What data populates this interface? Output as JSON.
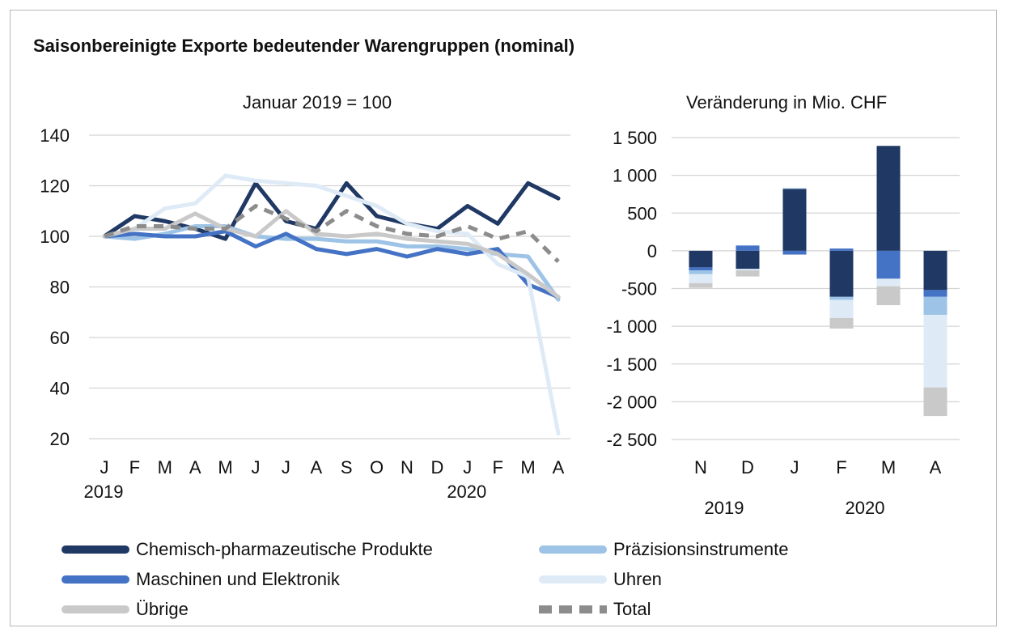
{
  "title": "Saisonbereinigte Exporte bedeutender Warengruppen (nominal)",
  "colors": {
    "chem": "#1f3864",
    "praez": "#9dc3e6",
    "masch": "#4472c4",
    "uhren": "#deebf7",
    "uebrige": "#c9c9c9",
    "total": "#8c8c8c"
  },
  "chart_data": [
    {
      "type": "line",
      "subtitle": "Januar 2019 = 100",
      "categories": [
        "J",
        "F",
        "M",
        "A",
        "M",
        "J",
        "J",
        "A",
        "S",
        "O",
        "N",
        "D",
        "J",
        "F",
        "M",
        "A"
      ],
      "year_labels": [
        {
          "label": "2019",
          "index": 0
        },
        {
          "label": "2020",
          "index": 12
        }
      ],
      "ylim": [
        20,
        140
      ],
      "yticks": [
        20,
        40,
        60,
        80,
        100,
        120,
        140
      ],
      "grid": true,
      "series": [
        {
          "name": "Chemisch-pharmazeutische Produkte",
          "key": "chem",
          "dashed": false,
          "values": [
            100,
            108,
            106,
            103,
            99,
            121,
            106,
            103,
            121,
            108,
            105,
            103,
            112,
            105,
            121,
            115
          ]
        },
        {
          "name": "Präzisionsinstrumente",
          "key": "praez",
          "dashed": false,
          "values": [
            100,
            99,
            101,
            104,
            104,
            100,
            99,
            99,
            98,
            98,
            96,
            96,
            95,
            93,
            92,
            75
          ]
        },
        {
          "name": "Maschinen und Elektronik",
          "key": "masch",
          "dashed": false,
          "values": [
            100,
            101,
            100,
            100,
            102,
            96,
            101,
            95,
            93,
            95,
            92,
            95,
            93,
            95,
            81,
            76
          ]
        },
        {
          "name": "Uhren",
          "key": "uhren",
          "dashed": false,
          "values": [
            100,
            103,
            111,
            113,
            124,
            122,
            121,
            120,
            116,
            112,
            105,
            102,
            101,
            89,
            84,
            22
          ]
        },
        {
          "name": "Übrige",
          "key": "uebrige",
          "dashed": false,
          "values": [
            100,
            103,
            103,
            109,
            103,
            100,
            110,
            101,
            100,
            101,
            99,
            98,
            97,
            93,
            85,
            76
          ]
        },
        {
          "name": "Total",
          "key": "total",
          "dashed": true,
          "values": [
            100,
            104,
            104,
            103,
            103,
            112,
            107,
            102,
            110,
            104,
            101,
            100,
            104,
            99,
            102,
            90
          ]
        }
      ]
    },
    {
      "type": "bar",
      "stacked": true,
      "subtitle": "Veränderung in Mio. CHF",
      "categories": [
        "N",
        "D",
        "J",
        "F",
        "M",
        "A"
      ],
      "year_labels": [
        {
          "label": "2019",
          "index": 0.5
        },
        {
          "label": "2020",
          "index": 3.5
        }
      ],
      "ylim": [
        -2500,
        1500
      ],
      "yticks": [
        1500,
        1000,
        500,
        0,
        -500,
        -1000,
        -1500,
        -2000,
        -2500
      ],
      "ytick_labels": [
        "1 500",
        "1 000",
        "500",
        "0",
        "-500",
        "-1 000",
        "-1 500",
        "-2 000",
        "-2 500"
      ],
      "grid": true,
      "series": [
        {
          "name": "Chemisch-pharmazeutische Produkte",
          "key": "chem",
          "values": [
            -220,
            -240,
            820,
            -610,
            1390,
            -520
          ]
        },
        {
          "name": "Maschinen und Elektronik",
          "key": "masch",
          "values": [
            -40,
            70,
            -50,
            30,
            -370,
            -90
          ]
        },
        {
          "name": "Präzisionsinstrumente",
          "key": "praez",
          "values": [
            -50,
            0,
            10,
            -40,
            0,
            -240
          ]
        },
        {
          "name": "Uhren",
          "key": "uhren",
          "values": [
            -120,
            -20,
            0,
            -240,
            -100,
            -960
          ]
        },
        {
          "name": "Übrige",
          "key": "uebrige",
          "values": [
            -60,
            -80,
            0,
            -140,
            -250,
            -380
          ]
        }
      ]
    }
  ],
  "legend": [
    {
      "key": "chem",
      "label": "Chemisch-pharmazeutische Produkte",
      "dashed": false
    },
    {
      "key": "praez",
      "label": "Präzisionsinstrumente",
      "dashed": false
    },
    {
      "key": "masch",
      "label": "Maschinen und Elektronik",
      "dashed": false
    },
    {
      "key": "uhren",
      "label": "Uhren",
      "dashed": false
    },
    {
      "key": "uebrige",
      "label": "Übrige",
      "dashed": false
    },
    {
      "key": "total",
      "label": "Total",
      "dashed": true
    }
  ]
}
